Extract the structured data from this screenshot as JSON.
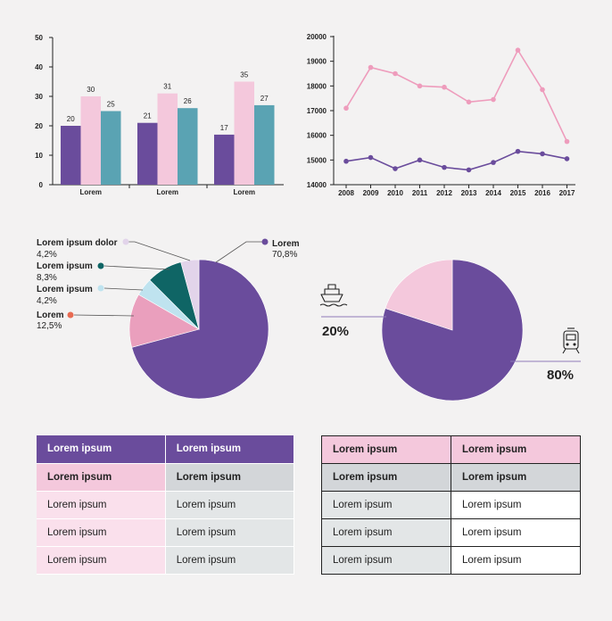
{
  "colors": {
    "purple": "#6a4c9c",
    "pink": "#f4c8dc",
    "teal": "#5aa3b3",
    "line_pink": "#ee9cbc",
    "pie_rose": "#ea9fbd",
    "pie_teal": "#0f6565",
    "pie_lightblue": "#bfe3ef",
    "pie_lilac": "#e2d4ea",
    "pie_orange": "#e86b52"
  },
  "chart_data": [
    {
      "type": "bar",
      "categories": [
        "Lorem",
        "Lorem",
        "Lorem"
      ],
      "series": [
        {
          "name": "purple",
          "values": [
            20,
            21,
            17
          ]
        },
        {
          "name": "pink",
          "values": [
            30,
            31,
            35
          ]
        },
        {
          "name": "teal",
          "values": [
            25,
            26,
            27
          ]
        }
      ],
      "yticks": [
        "0",
        "10",
        "20",
        "30",
        "40",
        "50"
      ],
      "ylim": [
        0,
        50
      ],
      "title": "",
      "xlabel": "",
      "ylabel": ""
    },
    {
      "type": "line",
      "x": [
        "2008",
        "2009",
        "2010",
        "2011",
        "2012",
        "2013",
        "2014",
        "2015",
        "2016",
        "2017"
      ],
      "series": [
        {
          "name": "pink",
          "values": [
            17100,
            18750,
            18500,
            18000,
            17950,
            17350,
            17450,
            19450,
            17850,
            15750
          ]
        },
        {
          "name": "purple",
          "values": [
            14950,
            15100,
            14650,
            15000,
            14700,
            14600,
            14900,
            15350,
            15250,
            15050
          ]
        }
      ],
      "yticks": [
        "14000",
        "15000",
        "16000",
        "17000",
        "18000",
        "19000",
        "20000"
      ],
      "ylim": [
        14000,
        20000
      ]
    },
    {
      "type": "pie",
      "slices": [
        {
          "label": "Lorem",
          "value_text": "70,8%",
          "value": 70.8
        },
        {
          "label": "Lorem",
          "value_text": "12,5%",
          "value": 12.5
        },
        {
          "label": "Lorem ipsum",
          "value_text": "4,2%",
          "value": 4.2
        },
        {
          "label": "Lorem ipsum",
          "value_text": "8,3%",
          "value": 8.3
        },
        {
          "label": "Lorem ipsum dolor",
          "value_text": "4,2%",
          "value": 4.2
        }
      ]
    },
    {
      "type": "pie",
      "slices": [
        {
          "label": "train-icon",
          "value_text": "80%",
          "value": 80
        },
        {
          "label": "ship-icon",
          "value_text": "20%",
          "value": 20
        }
      ]
    }
  ],
  "table1": {
    "header": [
      "Lorem ipsum",
      "Lorem ipsum"
    ],
    "subheader": [
      "Lorem ipsum",
      "Lorem ipsum"
    ],
    "rows": [
      [
        "Lorem ipsum",
        "Lorem ipsum"
      ],
      [
        "Lorem ipsum",
        "Lorem ipsum"
      ],
      [
        "Lorem ipsum",
        "Lorem ipsum"
      ]
    ]
  },
  "table2": {
    "header": [
      "Lorem ipsum",
      "Lorem ipsum"
    ],
    "subheader": [
      "Lorem ipsum",
      "Lorem ipsum"
    ],
    "rows": [
      [
        "Lorem ipsum",
        "Lorem ipsum"
      ],
      [
        "Lorem ipsum",
        "Lorem ipsum"
      ],
      [
        "Lorem ipsum",
        "Lorem ipsum"
      ]
    ]
  }
}
